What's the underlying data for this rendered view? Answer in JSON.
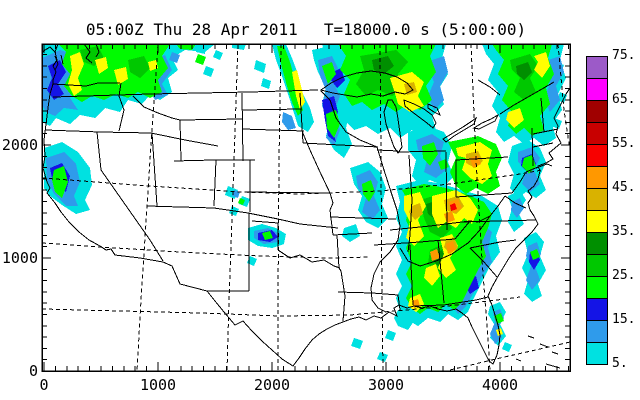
{
  "title": {
    "datetime": "05:00Z Thu 28 Apr 2011",
    "model_time": "T=18000.0 s (5:00:00)"
  },
  "axes": {
    "x": {
      "tick_values": [
        0,
        1000,
        2000,
        3000,
        4000
      ],
      "tick_labels": [
        "0",
        "1000",
        "2000",
        "3000",
        "4000"
      ],
      "minor_interval": 100,
      "minor_max": 4600,
      "range_km": [
        0,
        4614
      ]
    },
    "y": {
      "tick_values": [
        0,
        1000,
        2000
      ],
      "tick_labels": [
        "0",
        "1000",
        "2000"
      ],
      "minor_interval": 100,
      "minor_max": 2800,
      "range_km": [
        0,
        2894
      ]
    }
  },
  "colorbar": {
    "tick_labels": [
      "75.",
      "65.",
      "55.",
      "45.",
      "35.",
      "25.",
      "15.",
      "5."
    ],
    "display_top_to_bottom": [
      "70",
      "65",
      "60",
      "55",
      "50",
      "45",
      "40",
      "35",
      "30",
      "25",
      "20",
      "15",
      "10",
      "5"
    ],
    "palette": {
      "5": "#00E1E1",
      "10": "#2F9BEB",
      "15": "#1414E6",
      "20": "#00FB00",
      "25": "#00C800",
      "30": "#008F00",
      "35": "#FFFF00",
      "40": "#D9B200",
      "45": "#FF9800",
      "50": "#F80000",
      "55": "#C80000",
      "60": "#A00000",
      "65": "#FF00FF",
      "70": "#9C5AC8"
    },
    "line_color": "#000000",
    "background": "#FFFFFF"
  },
  "chart_data": {
    "type": "heatmap",
    "title": "05:00Z Thu 28 Apr 2011  T=18000.0 s (5:00:00)",
    "xlabel": "",
    "ylabel": "",
    "xlim": [
      0,
      4614
    ],
    "ylim": [
      0,
      2894
    ],
    "x_ticks": [
      0,
      1000,
      2000,
      3000,
      4000
    ],
    "y_ticks": [
      0,
      1000,
      2000
    ],
    "grid": false,
    "legend_position": "right-colorbar",
    "colorbar_tick_values": [
      75,
      65,
      55,
      45,
      35,
      25,
      15,
      5
    ],
    "shading_interval": 5,
    "shading_min": 5,
    "shading_max": 75,
    "field": "simulated radar reflectivity shaded every 5 units over a CONUS state-outline map",
    "regions": [
      {
        "name": "Pacific Northwest (WA/OR/ID/MT)",
        "x_km": 580,
        "y_km": 2620,
        "peak_level": 40
      },
      {
        "name": "Northern California coast",
        "x_km": 185,
        "y_km": 1690,
        "peak_level": 25
      },
      {
        "name": "Eastern Dakotas-Nebraska line",
        "x_km": 2180,
        "y_km": 2530,
        "peak_level": 35
      },
      {
        "name": "Minnesota cluster",
        "x_km": 2530,
        "y_km": 2400,
        "peak_level": 25
      },
      {
        "name": "Lake Superior / Upper Michigan",
        "x_km": 2990,
        "y_km": 2530,
        "peak_level": 45
      },
      {
        "name": "Wisconsin-Iowa patches",
        "x_km": 2860,
        "y_km": 1560,
        "peak_level": 25
      },
      {
        "name": "Midwest IL-IN-OH-KY complex",
        "x_km": 3520,
        "y_km": 1290,
        "peak_level": 50
      },
      {
        "name": "Southeast TN-AL-GA squall line",
        "x_km": 3470,
        "y_km": 895,
        "peak_level": 45
      },
      {
        "name": "Upstate NY / New England",
        "x_km": 4175,
        "y_km": 2490,
        "peak_level": 40
      },
      {
        "name": "Western PA / eastern OH",
        "x_km": 3750,
        "y_km": 1840,
        "peak_level": 45
      },
      {
        "name": "Carolinas coastal streak",
        "x_km": 4290,
        "y_km": 940,
        "peak_level": 20
      },
      {
        "name": "Colorado cells",
        "x_km": 1720,
        "y_km": 1515,
        "peak_level": 20
      },
      {
        "name": "Colorado-Kansas border blob",
        "x_km": 1950,
        "y_km": 1190,
        "peak_level": 25
      },
      {
        "name": "Florida east coast cells",
        "x_km": 3975,
        "y_km": 410,
        "peak_level": 35
      }
    ]
  }
}
